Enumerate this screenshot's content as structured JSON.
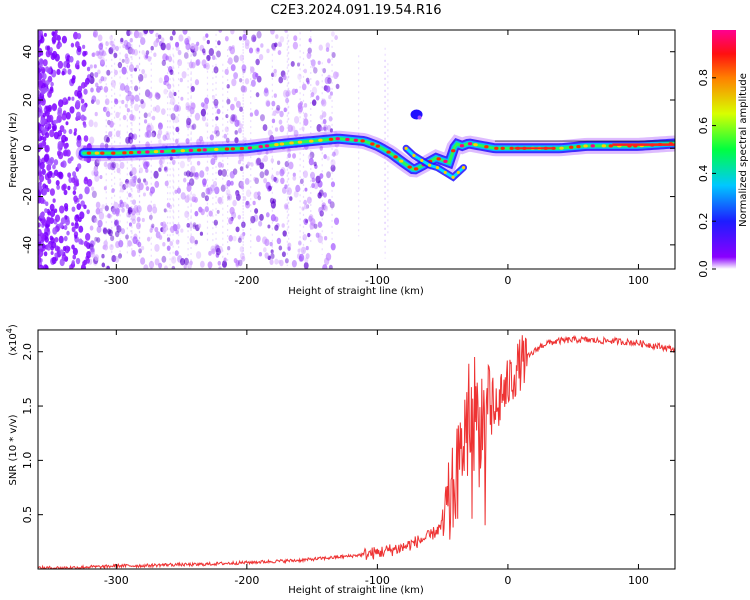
{
  "title": "C2E3.2024.091.19.54.R16",
  "chart_data": [
    {
      "type": "heatmap",
      "title": "C2E3.2024.091.19.54.R16",
      "xlabel": "Height of straight line (km)",
      "ylabel": "Frequency (Hz)",
      "xlim": [
        -360,
        128
      ],
      "ylim": [
        -50,
        49
      ],
      "x_ticks": [
        -300,
        -200,
        -100,
        0,
        100
      ],
      "y_ticks": [
        -40,
        -20,
        0,
        20,
        40
      ],
      "colorbar": {
        "label": "Normalized spectral amplitude",
        "range": [
          0.0,
          1.0
        ],
        "ticks": [
          "0.0",
          "0.2",
          "0.4",
          "0.6",
          "0.8"
        ],
        "tick_values": [
          0.0,
          0.2,
          0.4,
          0.6,
          0.8
        ]
      },
      "signal_trace": {
        "x": [
          -325,
          -300,
          -250,
          -200,
          -170,
          -150,
          -130,
          -110,
          -100,
          -90,
          -80,
          -72,
          -65,
          -55,
          -45,
          -40,
          -35,
          -30,
          -20,
          -10,
          0,
          20,
          40,
          60,
          80,
          100,
          128
        ],
        "y": [
          -2,
          -2,
          -1,
          0,
          2,
          3,
          4,
          3,
          1,
          -2,
          -6,
          -9,
          -7,
          -4,
          -6,
          2,
          1,
          2,
          1,
          0,
          0,
          0,
          0,
          1,
          1,
          1,
          2
        ]
      },
      "branch_trace": {
        "x": [
          -78,
          -72,
          -66,
          -60,
          -54,
          -48,
          -42,
          -38,
          -34
        ],
        "y": [
          0,
          -3,
          -5,
          -7,
          -8,
          -10,
          -12,
          -10,
          -8
        ]
      },
      "blob": {
        "x": -70,
        "y": 14
      }
    },
    {
      "type": "line",
      "xlabel": "Height of straight line (km)",
      "ylabel": "SNR (10 * v/v)",
      "exponent_label": "(x10",
      "exponent_power": "4",
      "exponent_close": ")",
      "xlim": [
        -360,
        128
      ],
      "ylim": [
        0,
        2.2
      ],
      "x_ticks": [
        -300,
        -200,
        -100,
        0,
        100
      ],
      "y_ticks": [
        0.5,
        1.0,
        1.5,
        2.0
      ],
      "y_tick_labels": [
        "0.5",
        "1.0",
        "1.5",
        "2.0"
      ],
      "series": [
        {
          "name": "SNR",
          "color": "#ee3333",
          "x": [
            -360,
            -340,
            -320,
            -310,
            -300,
            -290,
            -280,
            -260,
            -240,
            -220,
            -200,
            -180,
            -160,
            -140,
            -120,
            -100,
            -80,
            -70,
            -60,
            -50,
            -45,
            -40,
            -35,
            -30,
            -28,
            -25,
            -22,
            -20,
            -18,
            -15,
            -12,
            -10,
            -8,
            -5,
            -2,
            0,
            5,
            10,
            15,
            20,
            25,
            30,
            40,
            50,
            60,
            70,
            80,
            90,
            100,
            110,
            120,
            128
          ],
          "y": [
            0.01,
            0.01,
            0.02,
            0.02,
            0.03,
            0.03,
            0.03,
            0.04,
            0.04,
            0.05,
            0.06,
            0.07,
            0.08,
            0.1,
            0.12,
            0.15,
            0.2,
            0.25,
            0.3,
            0.4,
            0.55,
            0.8,
            1.1,
            1.5,
            1.3,
            1.6,
            1.2,
            1.5,
            1.35,
            1.45,
            1.3,
            1.55,
            1.4,
            1.65,
            1.6,
            1.7,
            1.8,
            1.9,
            1.95,
            2.0,
            2.05,
            2.08,
            2.1,
            2.11,
            2.11,
            2.1,
            2.1,
            2.09,
            2.08,
            2.06,
            2.04,
            2.02
          ]
        }
      ]
    }
  ]
}
